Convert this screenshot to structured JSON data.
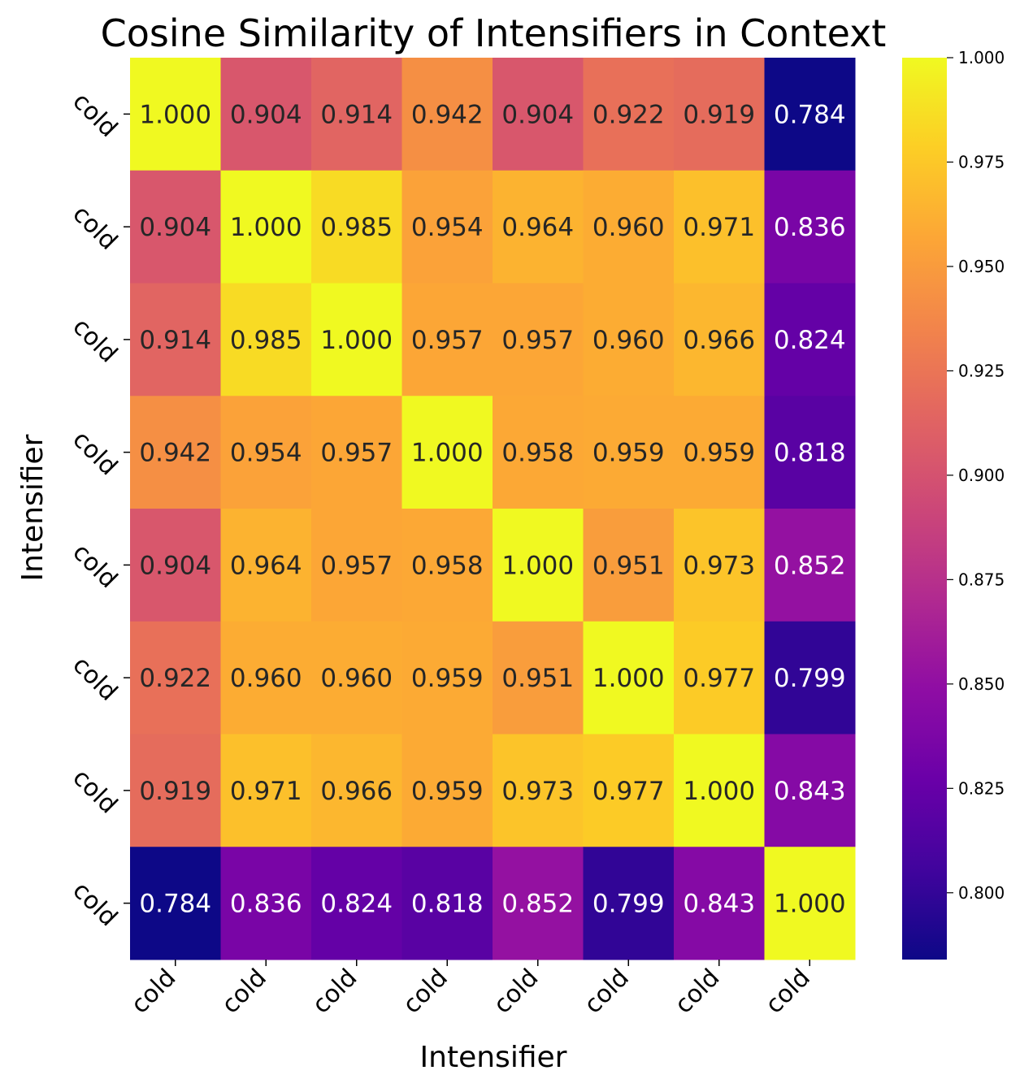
{
  "chart_data": {
    "type": "heatmap",
    "title": "Cosine Similarity of Intensifiers in Context",
    "xlabel": "Intensifier",
    "ylabel": "Intensifier",
    "x_categories": [
      "cold",
      "cold",
      "cold",
      "cold",
      "cold",
      "cold",
      "cold",
      "cold"
    ],
    "y_categories": [
      "cold",
      "cold",
      "cold",
      "cold",
      "cold",
      "cold",
      "cold",
      "cold"
    ],
    "values": [
      [
        1.0,
        0.904,
        0.914,
        0.942,
        0.904,
        0.922,
        0.919,
        0.784
      ],
      [
        0.904,
        1.0,
        0.985,
        0.954,
        0.964,
        0.96,
        0.971,
        0.836
      ],
      [
        0.914,
        0.985,
        1.0,
        0.957,
        0.957,
        0.96,
        0.966,
        0.824
      ],
      [
        0.942,
        0.954,
        0.957,
        1.0,
        0.958,
        0.959,
        0.959,
        0.818
      ],
      [
        0.904,
        0.964,
        0.957,
        0.958,
        1.0,
        0.951,
        0.973,
        0.852
      ],
      [
        0.922,
        0.96,
        0.96,
        0.959,
        0.951,
        1.0,
        0.977,
        0.799
      ],
      [
        0.919,
        0.971,
        0.966,
        0.959,
        0.973,
        0.977,
        1.0,
        0.843
      ],
      [
        0.784,
        0.836,
        0.824,
        0.818,
        0.852,
        0.799,
        0.843,
        1.0
      ]
    ],
    "value_format": "3 decimals",
    "colormap": "plasma",
    "vmin": 0.784,
    "vmax": 1.0,
    "colorbar_ticks": [
      "0.800",
      "0.825",
      "0.850",
      "0.875",
      "0.900",
      "0.925",
      "0.950",
      "0.975",
      "1.000"
    ],
    "colorbar_tick_values": [
      0.8,
      0.825,
      0.85,
      0.875,
      0.9,
      0.925,
      0.95,
      0.975,
      1.0
    ],
    "colorbar_placement": "right",
    "colors": {
      "text_dark": "#262626",
      "text_light": "#ffffff",
      "axis": "#000000"
    }
  }
}
